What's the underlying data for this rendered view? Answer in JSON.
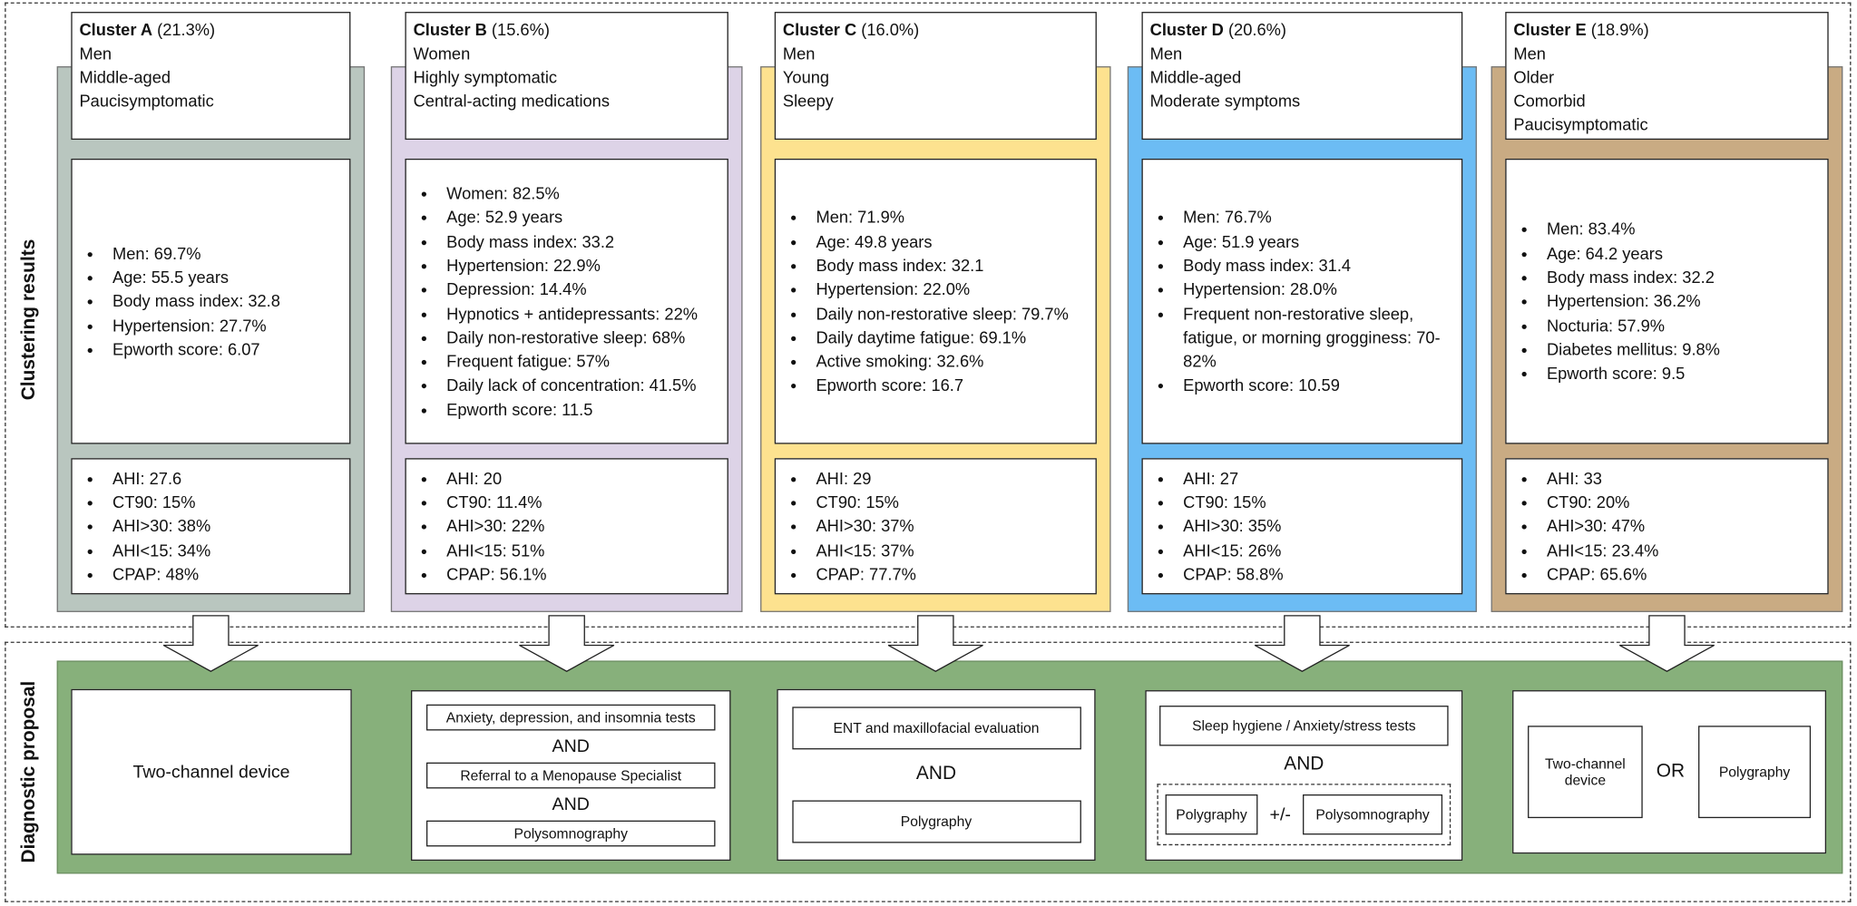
{
  "section_labels": [
    "Clustering results",
    "Diagnostic proposal"
  ],
  "clusters": [
    {
      "name": "Cluster A",
      "percent": "(21.3%)",
      "color": "#b9c6bf",
      "profile": [
        "Men",
        "Middle-aged",
        "Paucisymptomatic"
      ],
      "characteristics": [
        "Men: 69.7%",
        "Age: 55.5 years",
        "Body mass index: 32.8",
        "Hypertension: 27.7%",
        "Epworth score: 6.07"
      ],
      "sleep_study": [
        "AHI: 27.6",
        "CT90: 15%",
        "AHI>30: 38%",
        "AHI<15: 34%",
        "CPAP: 48%"
      ]
    },
    {
      "name": "Cluster B",
      "percent": "(15.6%)",
      "color": "#ddd3e7",
      "profile": [
        "Women",
        "Highly symptomatic",
        "Central-acting medications"
      ],
      "characteristics": [
        "Women: 82.5%",
        "Age: 52.9 years",
        "Body mass index: 33.2",
        "Hypertension: 22.9%",
        "Depression: 14.4%",
        "Hypnotics + antidepressants: 22%",
        "Daily non-restorative sleep: 68%",
        "Frequent fatigue: 57%",
        "Daily lack of concentration: 41.5%",
        "Epworth score: 11.5"
      ],
      "sleep_study": [
        "AHI: 20",
        "CT90: 11.4%",
        "AHI>30: 22%",
        "AHI<15: 51%",
        "CPAP: 56.1%"
      ]
    },
    {
      "name": "Cluster C",
      "percent": "(16.0%)",
      "color": "#fde28f",
      "profile": [
        "Men",
        "Young",
        "Sleepy"
      ],
      "characteristics": [
        "Men: 71.9%",
        "Age: 49.8 years",
        "Body mass index: 32.1",
        "Hypertension: 22.0%",
        "Daily non-restorative sleep: 79.7%",
        "Daily daytime fatigue: 69.1%",
        "Active smoking: 32.6%",
        "Epworth score: 16.7"
      ],
      "sleep_study": [
        "AHI: 29",
        "CT90: 15%",
        "AHI>30: 37%",
        "AHI<15: 37%",
        "CPAP: 77.7%"
      ]
    },
    {
      "name": "Cluster D",
      "percent": "(20.6%)",
      "color": "#6cbcf4",
      "profile": [
        "Men",
        "Middle-aged",
        "Moderate symptoms"
      ],
      "characteristics": [
        "Men: 76.7%",
        "Age: 51.9 years",
        "Body mass index: 31.4",
        "Hypertension: 28.0%",
        "Frequent non-restorative sleep, fatigue, or morning grogginess: 70-82%",
        "Epworth score: 10.59"
      ],
      "sleep_study": [
        "AHI: 27",
        "CT90: 15%",
        "AHI>30: 35%",
        "AHI<15: 26%",
        "CPAP: 58.8%"
      ]
    },
    {
      "name": "Cluster E",
      "percent": "(18.9%)",
      "color": "#c9ab83",
      "profile": [
        "Men",
        "Older",
        "Comorbid",
        "Paucisymptomatic"
      ],
      "characteristics": [
        "Men: 83.4%",
        "Age: 64.2 years",
        "Body mass index: 32.2",
        "Hypertension: 36.2%",
        "Nocturia: 57.9%",
        "Diabetes mellitus: 9.8%",
        "Epworth score: 9.5"
      ],
      "sleep_study": [
        "AHI: 33",
        "CT90: 20%",
        "AHI>30: 47%",
        "AHI<15: 23.4%",
        "CPAP: 65.6%"
      ]
    }
  ],
  "proposals": [
    {
      "text": "Two-channel device"
    },
    {
      "items": [
        "Anxiety, depression, and insomnia tests",
        "AND",
        "Referral to a Menopause Specialist",
        "AND",
        "Polysomnography"
      ]
    },
    {
      "items": [
        "ENT and maxillofacial evaluation",
        "AND",
        "Polygraphy"
      ]
    },
    {
      "items": [
        "Sleep hygiene / Anxiety/stress tests",
        "AND"
      ],
      "options": [
        "Polygraphy",
        "+/-",
        "Polysomnography"
      ]
    },
    {
      "options": [
        "Two-channel device",
        "OR",
        "Polygraphy"
      ]
    }
  ]
}
